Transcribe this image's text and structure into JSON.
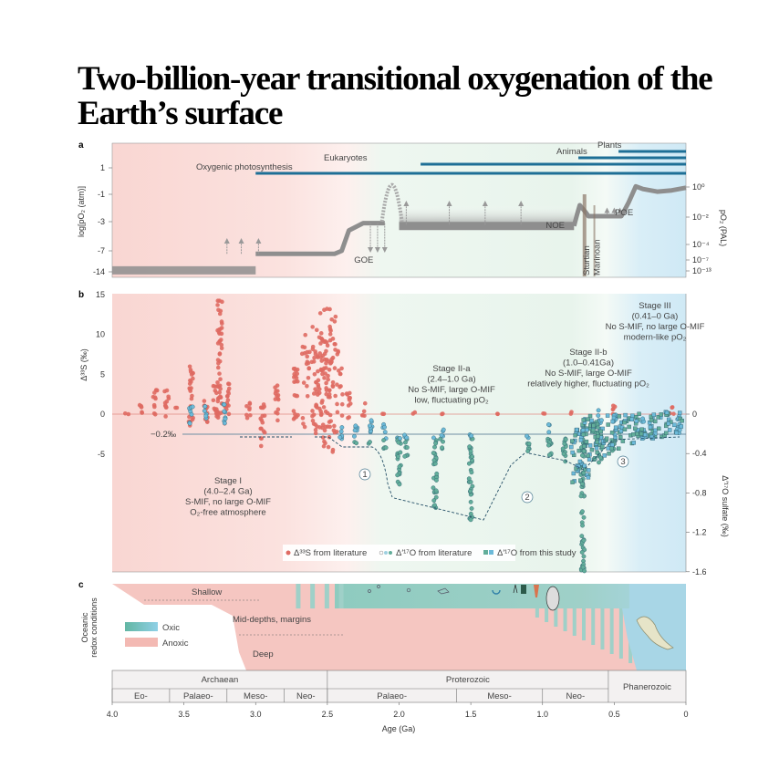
{
  "title": "Two-billion-year transitional oxygenation of the Earth’s surface",
  "colors": {
    "anoxic": "#f4c4bf",
    "oxic_teal": "#7fc4b5",
    "oxic_blue": "#a9d8ea",
    "life_bar": "#1e6f96",
    "po2_curve": "#8e8e8e",
    "s33": "#df6a62",
    "o17_lit": "#6cbad9",
    "o17_study": "#62ae9a"
  },
  "chart_data": [
    {
      "panel_label": "a",
      "type": "line",
      "ylabel": "log[pO₂ (atm)]",
      "ylabel_right": "pO₂ (PAL)",
      "yticks": [
        "1",
        "-1",
        "-3",
        "-7",
        "-14"
      ],
      "yticks_right": [
        "10⁰",
        "10⁻²",
        "10⁻⁴",
        "10⁻⁷",
        "10⁻¹³"
      ],
      "xlim": [
        4.0,
        0
      ],
      "life_bars": [
        {
          "label": "Oxygenic photosynthesis",
          "start_ga": 3.0
        },
        {
          "label": "Eukaryotes",
          "start_ga": 1.85
        },
        {
          "label": "Animals",
          "start_ga": 0.75
        },
        {
          "label": "Plants",
          "start_ga": 0.47
        }
      ],
      "po2_segments": [
        [
          [
            4.0,
            -13.5
          ],
          [
            3.0,
            -13.5
          ]
        ],
        [
          [
            3.0,
            -8
          ],
          [
            2.45,
            -8
          ],
          [
            2.4,
            -7
          ],
          [
            2.35,
            -4.2
          ],
          [
            2.25,
            -3.2
          ],
          [
            2.1,
            -3.2
          ]
        ],
        [
          [
            2.0,
            -3.6
          ],
          [
            0.78,
            -3.6
          ]
        ],
        [
          [
            0.78,
            -3.6
          ],
          [
            0.76,
            -2.5
          ],
          [
            0.74,
            -1.8
          ],
          [
            0.7,
            -2.3
          ],
          [
            0.68,
            -2.6
          ],
          [
            0.45,
            -2.6
          ],
          [
            0.4,
            -1.6
          ],
          [
            0.35,
            -0.4
          ],
          [
            0.3,
            -0.6
          ],
          [
            0.2,
            -0.8
          ],
          [
            0.1,
            -0.7
          ],
          [
            0,
            -0.5
          ]
        ]
      ],
      "events": [
        {
          "label": "GOE",
          "age": 2.25
        },
        {
          "label": "NOE",
          "age": 0.85
        },
        {
          "label": "POE",
          "age": 0.4
        },
        {
          "label": "Sturtian",
          "age": 0.7
        },
        {
          "label": "Marinoan",
          "age": 0.64
        }
      ]
    },
    {
      "panel_label": "b",
      "type": "scatter",
      "ylabel": "Δ³³S (‰)",
      "ylabel_right": "Δ′¹⁷O sulfate (‰)",
      "ylim": [
        -5,
        15
      ],
      "ylim_right": [
        -1.6,
        0
      ],
      "yticks": [
        "15",
        "10",
        "5",
        "0",
        "-5"
      ],
      "yticks_right": [
        "0",
        "-0.4",
        "-0.8",
        "-1.2",
        "-1.6"
      ],
      "reference_label": "−0.2‰",
      "legend": [
        "Δ³³S from literature",
        "Δ′¹⁷O from literature",
        "Δ′¹⁷O from this study"
      ],
      "legend_placement": "bottom-center",
      "s33_literature_ranges": [
        [
          3.9,
          0,
          0.3
        ],
        [
          3.8,
          -0.5,
          1.5
        ],
        [
          3.7,
          -0.5,
          3.3
        ],
        [
          3.62,
          -0.5,
          3.2
        ],
        [
          3.55,
          0.8,
          0.8
        ],
        [
          3.45,
          -1.5,
          6
        ],
        [
          3.35,
          -1,
          2
        ],
        [
          3.28,
          -0.5,
          4
        ],
        [
          3.25,
          -1,
          14.3
        ],
        [
          3.2,
          -1.2,
          4
        ],
        [
          3.05,
          -1,
          1.5
        ],
        [
          2.95,
          -4,
          1.5
        ],
        [
          2.85,
          -1,
          3.8
        ],
        [
          2.72,
          -1,
          6
        ],
        [
          2.62,
          -2,
          10
        ],
        [
          2.55,
          -3,
          11
        ],
        [
          2.5,
          -5,
          13.5
        ],
        [
          2.45,
          -3,
          8.8
        ],
        [
          2.35,
          -0.5,
          2.8
        ],
        [
          2.25,
          -0.3,
          1.5
        ],
        [
          2.1,
          -0.2,
          0.4
        ],
        [
          1.9,
          -0.1,
          0.3
        ],
        [
          1.7,
          0,
          0.1
        ],
        [
          1.3,
          0,
          0.1
        ],
        [
          1.0,
          0,
          0.3
        ],
        [
          0.8,
          0,
          0.3
        ],
        [
          0.5,
          0,
          1.5
        ],
        [
          0.1,
          0,
          1.2
        ]
      ],
      "o17_literature_ranges": [
        [
          3.45,
          -0.1,
          0.1
        ],
        [
          3.35,
          -0.05,
          0.1
        ],
        [
          3.22,
          -0.1,
          0.1
        ],
        [
          2.4,
          -0.1,
          -0.25
        ],
        [
          2.3,
          -0.1,
          -0.3
        ],
        [
          2.2,
          -0.05,
          -0.3
        ],
        [
          2.1,
          -0.1,
          -0.35
        ],
        [
          2.0,
          -0.2,
          -0.75
        ],
        [
          1.95,
          -0.2,
          -0.45
        ],
        [
          1.75,
          -0.2,
          -0.95
        ],
        [
          1.7,
          -0.15,
          -0.35
        ],
        [
          1.5,
          -0.2,
          -1.1
        ],
        [
          1.1,
          -0.2,
          -0.4
        ],
        [
          0.95,
          -0.1,
          -0.45
        ],
        [
          0.85,
          -0.2,
          -0.5
        ],
        [
          0.72,
          -0.05,
          -1.6
        ],
        [
          0.6,
          0.05,
          -0.5
        ],
        [
          0.5,
          0,
          -0.4
        ],
        [
          0.3,
          0,
          -0.25
        ],
        [
          0.05,
          0.05,
          -0.2
        ]
      ],
      "o17_this_study_ranges": [
        [
          0.75,
          -0.1,
          -0.7
        ],
        [
          0.68,
          0,
          -0.5
        ],
        [
          0.6,
          -0.1,
          -0.45
        ],
        [
          0.5,
          0,
          -0.35
        ],
        [
          0.4,
          0.02,
          -0.3
        ],
        [
          0.3,
          0,
          -0.25
        ],
        [
          0.2,
          0,
          -0.25
        ],
        [
          0.1,
          0.05,
          -0.2
        ]
      ],
      "stages": [
        {
          "name": "Stage I",
          "range": "(4.0–2.4 Ga)",
          "line1": "S-MIF, no large O-MIF",
          "line2": "O₂-free atmosphere"
        },
        {
          "name": "Stage II-a",
          "range": "(2.4–1.0 Ga)",
          "line1": "No S-MIF, large O-MIF",
          "line2": "low, fluctuating pO₂"
        },
        {
          "name": "Stage II-b",
          "range": "(1.0–0.41Ga)",
          "line1": "No S-MIF, large O-MIF",
          "line2": "relatively higher, fluctuating pO₂"
        },
        {
          "name": "Stage III",
          "range": "(0.41–0 Ga)",
          "line1": "No S-MIF, no large O-MIF",
          "line2": "modern-like pO₂"
        }
      ],
      "markers": [
        "1",
        "2",
        "3"
      ]
    },
    {
      "panel_label": "c",
      "type": "area",
      "ylabel_line1": "Oceanic",
      "ylabel_line2": "redox conditions",
      "zones": [
        "Shallow",
        "Mid-depths, margins",
        "Deep"
      ],
      "legend": [
        "Oxic",
        "Anoxic"
      ],
      "xlabel": "Age (Ga)",
      "xticks": [
        "4.0",
        "3.5",
        "3.0",
        "2.5",
        "2.0",
        "1.5",
        "1.0",
        "0.5",
        "0"
      ],
      "eons": [
        {
          "name": "Archaean",
          "from": 4.0,
          "to": 2.5
        },
        {
          "name": "Proterozoic",
          "from": 2.5,
          "to": 0.541
        },
        {
          "name": "Phanerozoic",
          "from": 0.541,
          "to": 0
        }
      ],
      "eras": [
        {
          "name": "Eo-",
          "from": 4.0,
          "to": 3.6
        },
        {
          "name": "Palaeo-",
          "from": 3.6,
          "to": 3.2
        },
        {
          "name": "Meso-",
          "from": 3.2,
          "to": 2.8
        },
        {
          "name": "Neo-",
          "from": 2.8,
          "to": 2.5
        },
        {
          "name": "Palaeo-",
          "from": 2.5,
          "to": 1.6
        },
        {
          "name": "Meso-",
          "from": 1.6,
          "to": 1.0
        },
        {
          "name": "Neo-",
          "from": 1.0,
          "to": 0.541
        }
      ]
    }
  ]
}
